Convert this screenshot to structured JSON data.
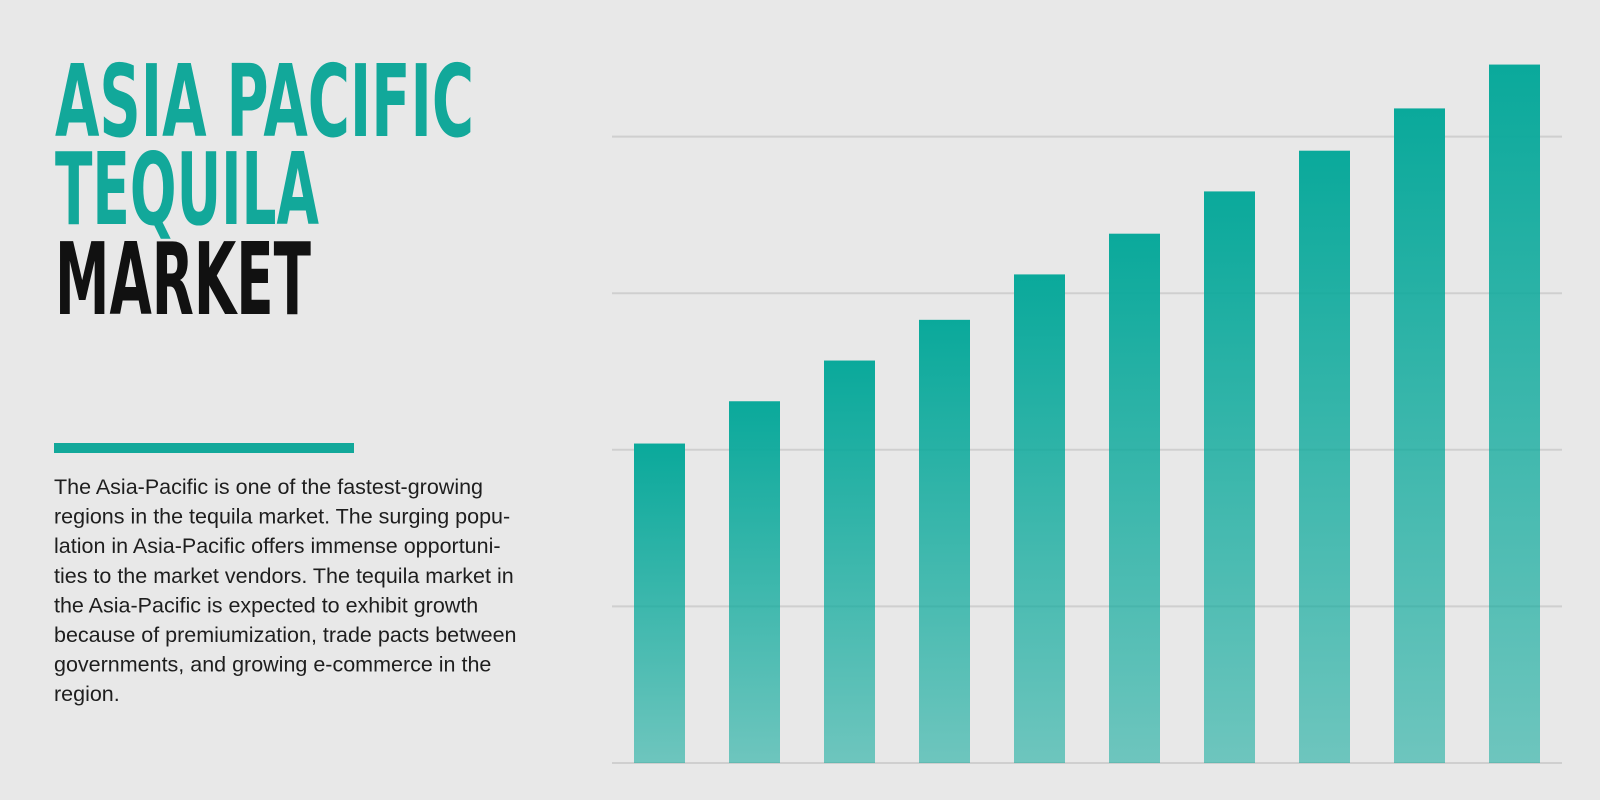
{
  "title_lines": [
    "ASIA PACIFIC",
    "TEQUILA",
    "MARKET"
  ],
  "body_lines": [
    "The Asia-Pacific is one of the fastest-growing",
    "regions in the tequila market. The surging popu-",
    "lation in Asia-Pacific offers immense opportuni-",
    "ties to the market vendors. The tequila market in",
    "the Asia-Pacific is expected to exhibit growth",
    "because of premiumization, trade pacts between",
    "governments, and growing e-commerce in the",
    "region."
  ],
  "chart_data": {
    "type": "bar",
    "categories": [
      null,
      null,
      null,
      null,
      null,
      null,
      null,
      null,
      null,
      null
    ],
    "values": [
      2.04,
      2.31,
      2.57,
      2.83,
      3.12,
      3.38,
      3.65,
      3.91,
      4.18,
      4.46
    ],
    "color": "#0aa99b",
    "ylim": [
      0,
      4.47
    ],
    "yticks": [
      0,
      1,
      2,
      3,
      4
    ],
    "grid": true
  }
}
